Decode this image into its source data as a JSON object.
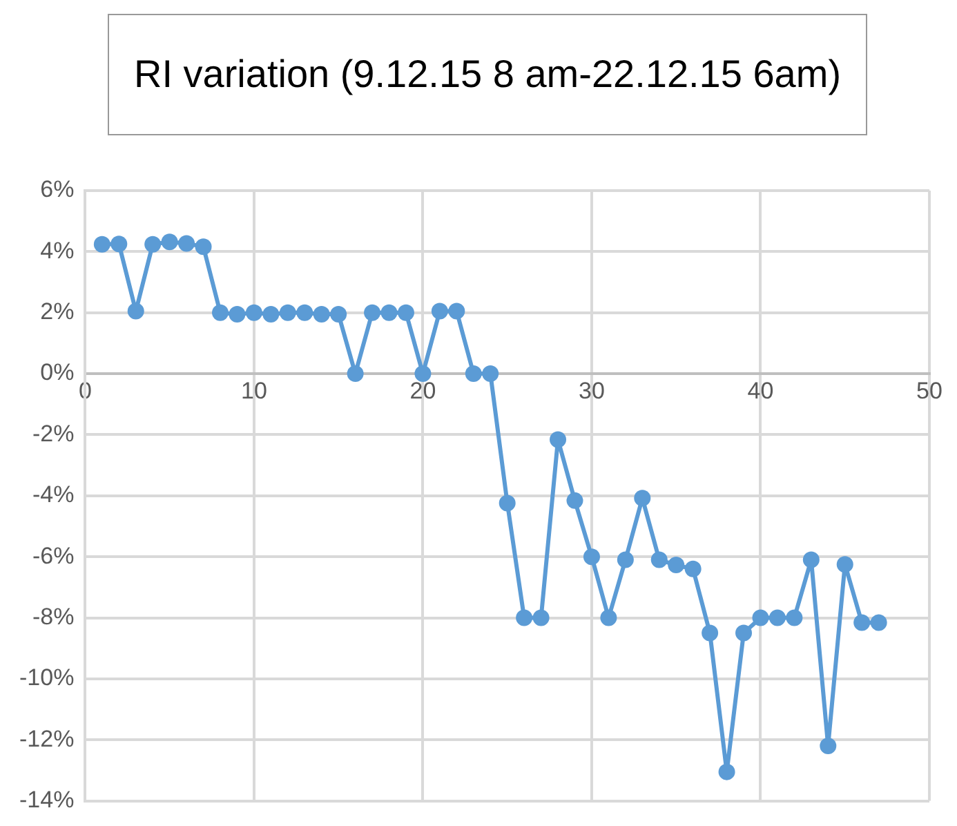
{
  "chart_data": {
    "type": "line",
    "title": "RI variation (9.12.15 8 am-22.12.15 6am)",
    "x": [
      1,
      2,
      3,
      4,
      5,
      6,
      7,
      8,
      9,
      10,
      11,
      12,
      13,
      14,
      15,
      16,
      17,
      18,
      19,
      20,
      21,
      22,
      23,
      24,
      25,
      26,
      27,
      28,
      29,
      30,
      31,
      32,
      33,
      34,
      35,
      36,
      37,
      38,
      39,
      40,
      41,
      42,
      43,
      44,
      45,
      46,
      47
    ],
    "series": [
      {
        "color": "#5b9bd5",
        "values": [
          4.24,
          4.25,
          2.05,
          4.24,
          4.32,
          4.27,
          4.16,
          2.0,
          1.95,
          2.0,
          1.95,
          2.0,
          2.0,
          1.95,
          1.95,
          0,
          2.0,
          2.0,
          2.0,
          0,
          2.05,
          2.05,
          0,
          0,
          -4.24,
          -8.0,
          -8.0,
          -2.16,
          -4.16,
          -6.0,
          -8.0,
          -6.1,
          -4.08,
          -6.1,
          -6.27,
          -6.4,
          -8.5,
          -13.05,
          -8.5,
          -8.0,
          -8.0,
          -8.0,
          -6.1,
          -12.2,
          -6.25,
          -8.16,
          -8.16
        ]
      }
    ],
    "xlim": [
      0,
      50
    ],
    "xticks": [
      0,
      10,
      20,
      30,
      40,
      50
    ],
    "ylim": [
      -14,
      6
    ],
    "yticks": [
      {
        "value": -14,
        "label": "-14%"
      },
      {
        "value": -12,
        "label": "-12%"
      },
      {
        "value": -10,
        "label": "-10%"
      },
      {
        "value": -8,
        "label": "-8%"
      },
      {
        "value": -6,
        "label": "-6%"
      },
      {
        "value": -4,
        "label": "-4%"
      },
      {
        "value": -2,
        "label": "-2%"
      },
      {
        "value": 0,
        "label": "0%"
      },
      {
        "value": 2,
        "label": "2%"
      },
      {
        "value": 4,
        "label": "4%"
      },
      {
        "value": 6,
        "label": "6%"
      }
    ],
    "grid": true,
    "legend": false,
    "marker": "circle",
    "line_style": "solid"
  }
}
